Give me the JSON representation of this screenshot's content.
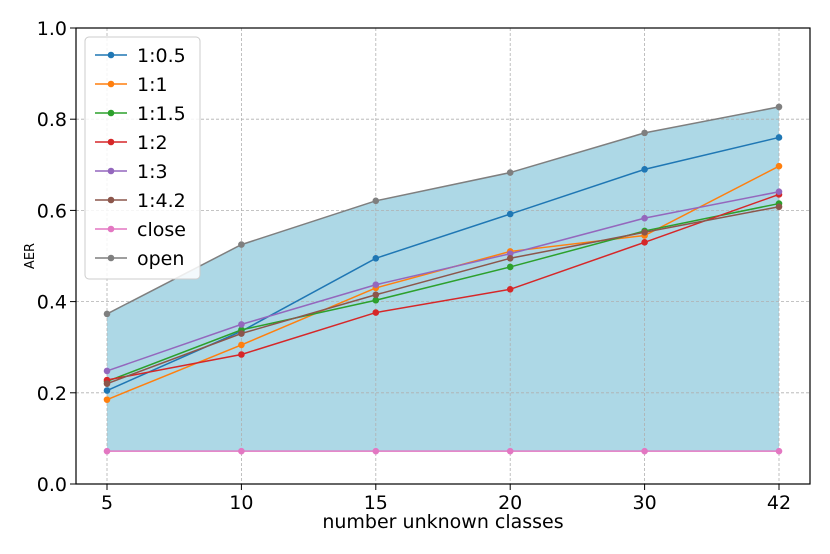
{
  "chart_data": {
    "type": "line",
    "xlabel": "number unknown classes",
    "ylabel": "AER",
    "categories": [
      "5",
      "10",
      "15",
      "20",
      "30",
      "42"
    ],
    "ylim": [
      0.0,
      1.0
    ],
    "yticks": [
      "0.0",
      "0.2",
      "0.4",
      "0.6",
      "0.8",
      "1.0"
    ],
    "grid": true,
    "legend_position": "top-left",
    "fill_between": {
      "lower": "close",
      "upper": "open",
      "color": "#add8e6"
    },
    "series": [
      {
        "name": "1:0.5",
        "color": "#1f77b4",
        "values": [
          0.205,
          0.335,
          0.495,
          0.592,
          0.69,
          0.76
        ]
      },
      {
        "name": "1:1",
        "color": "#ff7f0e",
        "values": [
          0.185,
          0.305,
          0.43,
          0.51,
          0.545,
          0.697
        ]
      },
      {
        "name": "1:1.5",
        "color": "#2ca02c",
        "values": [
          0.225,
          0.338,
          0.403,
          0.476,
          0.555,
          0.615
        ]
      },
      {
        "name": "1:2",
        "color": "#d62728",
        "values": [
          0.228,
          0.284,
          0.376,
          0.427,
          0.53,
          0.635
        ]
      },
      {
        "name": "1:3",
        "color": "#9467bd",
        "values": [
          0.248,
          0.35,
          0.437,
          0.505,
          0.583,
          0.641
        ]
      },
      {
        "name": "1:4.2",
        "color": "#8c564b",
        "values": [
          0.22,
          0.33,
          0.415,
          0.495,
          0.552,
          0.608
        ]
      },
      {
        "name": "close",
        "color": "#e377c2",
        "values": [
          0.072,
          0.072,
          0.072,
          0.072,
          0.072,
          0.072
        ]
      },
      {
        "name": "open",
        "color": "#7f7f7f",
        "values": [
          0.373,
          0.525,
          0.621,
          0.683,
          0.77,
          0.827
        ]
      }
    ]
  }
}
